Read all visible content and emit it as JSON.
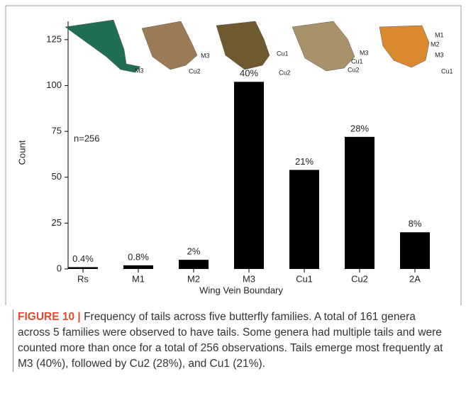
{
  "chart_data": {
    "type": "bar",
    "y_label": "Count",
    "x_label": "Wing Vein Boundary",
    "annotation": "n=256",
    "categories": [
      "Rs",
      "M1",
      "M2",
      "M3",
      "Cu1",
      "Cu2",
      "2A"
    ],
    "values": [
      1,
      2,
      5,
      102,
      54,
      72,
      20
    ],
    "value_labels": [
      "0.4%",
      "0.8%",
      "2%",
      "40%",
      "21%",
      "28%",
      "8%"
    ],
    "color": "#000000",
    "ylim": [
      0,
      135
    ],
    "yticks": [
      0,
      25,
      50,
      75,
      100,
      125
    ],
    "wing_images": [
      [
        "M3"
      ],
      [
        "M3",
        "Cu2"
      ],
      [
        "Cu1",
        "Cu2"
      ],
      [
        "M3",
        "Cu1",
        "Cu2"
      ],
      [
        "M1",
        "M2",
        "M3",
        "Cu1"
      ]
    ]
  },
  "caption": {
    "label": "FIGURE 10 |",
    "text": "Frequency of tails across five butterfly families. A total of 161 genera across 5 families were observed to have tails. Some genera had multiple tails and were counted more than once for a total of 256 observations. Tails emerge most frequently at M3 (40%), followed by Cu2 (28%), and Cu1 (21%)."
  }
}
